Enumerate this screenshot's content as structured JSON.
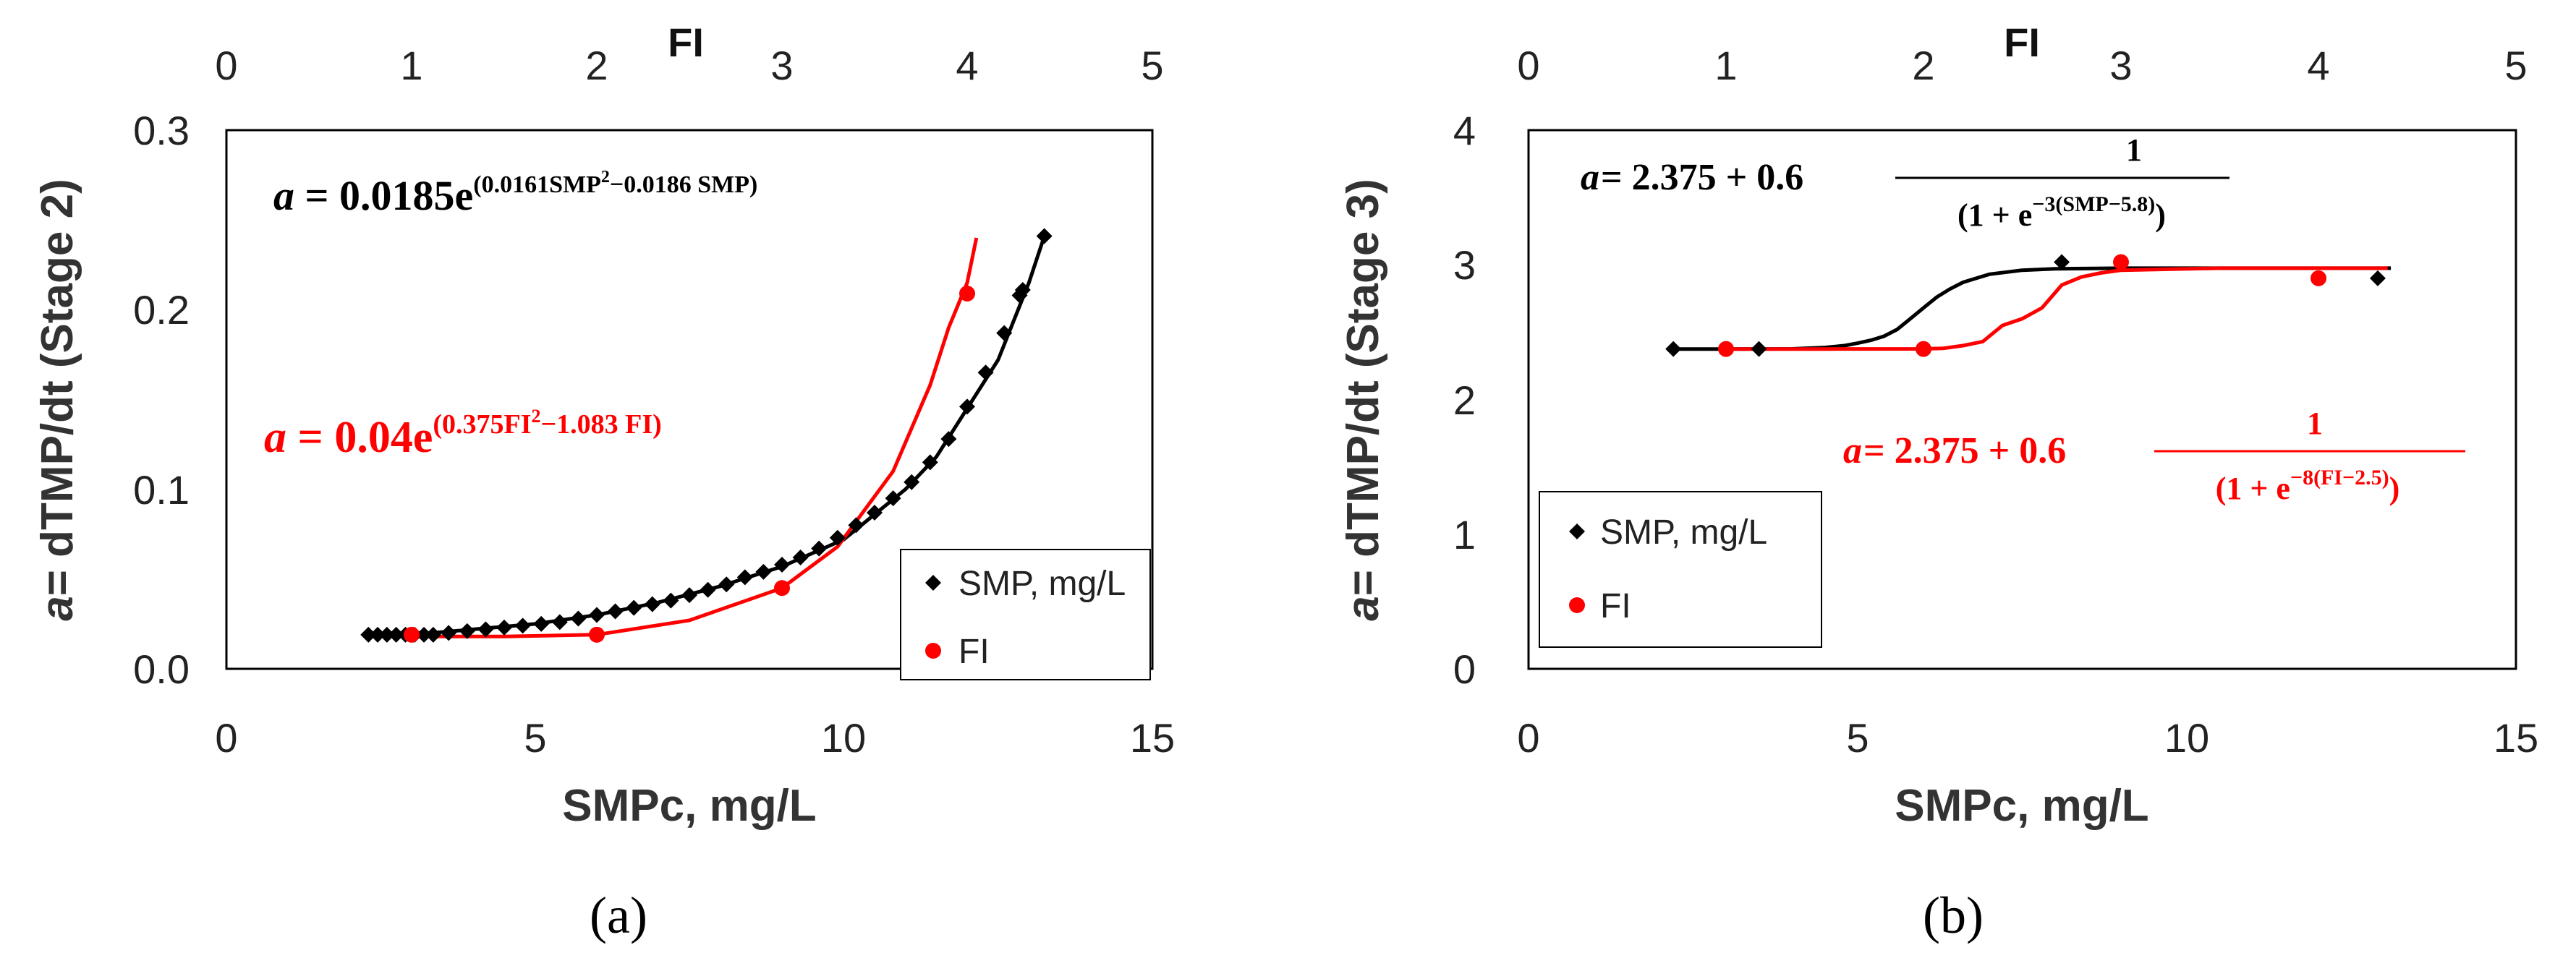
{
  "chart_data": [
    {
      "type": "scatter",
      "panel_label": "(a)",
      "xlabel": "SMPc, mg/L",
      "x2label": "FI",
      "ylabel": "= dTMP/dt  (Stage 2)",
      "ylabel_symbol": "a",
      "xlim": [
        0,
        15
      ],
      "x2lim": [
        0,
        5
      ],
      "ylim": [
        0,
        0.3
      ],
      "x_ticks": [
        "0",
        "5",
        "10",
        "15"
      ],
      "x2_ticks": [
        "0",
        "1",
        "2",
        "3",
        "4",
        "5"
      ],
      "y_ticks": [
        "0.0",
        "0.1",
        "0.2",
        "0.3"
      ],
      "grid": false,
      "legend_position": "bottom-right",
      "equations": [
        {
          "name": "smp",
          "lhs": "a",
          "coef": " = 0.0185e",
          "exp_a": "(0.0161SMP",
          "exp_b": "2",
          "exp_c": "−0.0186 SMP)",
          "color": "#000000"
        },
        {
          "name": "fi",
          "lhs": "a",
          "coef": " = 0.04e",
          "exp_a": "(0.375FI",
          "exp_b": "2",
          "exp_c": "−1.083 FI)",
          "color": "#ff0000"
        }
      ],
      "series": [
        {
          "name": "SMP, mg/L",
          "axis": "x",
          "color": "#000000",
          "marker": "diamond",
          "x": [
            2.3,
            2.45,
            2.6,
            2.75,
            2.9,
            3.05,
            3.2,
            3.35,
            3.6,
            3.9,
            4.2,
            4.5,
            4.8,
            5.1,
            5.4,
            5.7,
            6.0,
            6.3,
            6.6,
            6.9,
            7.2,
            7.5,
            7.8,
            8.1,
            8.4,
            8.7,
            9.0,
            9.3,
            9.6,
            9.9,
            10.2,
            10.5,
            10.8,
            11.1,
            11.4,
            11.7,
            12.0,
            12.3,
            12.6,
            12.85,
            12.9,
            13.25
          ],
          "y": [
            0.019,
            0.019,
            0.019,
            0.019,
            0.019,
            0.019,
            0.019,
            0.019,
            0.02,
            0.021,
            0.022,
            0.023,
            0.024,
            0.025,
            0.026,
            0.028,
            0.03,
            0.032,
            0.034,
            0.036,
            0.038,
            0.041,
            0.044,
            0.047,
            0.051,
            0.054,
            0.058,
            0.062,
            0.067,
            0.073,
            0.08,
            0.087,
            0.095,
            0.104,
            0.115,
            0.128,
            0.146,
            0.165,
            0.187,
            0.208,
            0.211,
            0.241
          ]
        },
        {
          "name": "FI",
          "axis": "x2",
          "color": "#ff0000",
          "marker": "circle",
          "x": [
            1,
            2,
            3,
            4
          ],
          "y": [
            0.019,
            0.019,
            0.045,
            0.209
          ]
        }
      ],
      "fits": [
        {
          "name": "SMP fit",
          "axis": "x",
          "color": "#000000",
          "x": [
            2.3,
            3,
            4,
            5,
            6,
            7,
            8,
            9,
            10,
            11,
            11.5,
            12,
            12.5,
            13,
            13.25
          ],
          "y": [
            0.019,
            0.019,
            0.022,
            0.025,
            0.03,
            0.037,
            0.046,
            0.057,
            0.072,
            0.1,
            0.118,
            0.145,
            0.172,
            0.215,
            0.241
          ]
        },
        {
          "name": "FI fit",
          "axis": "x2",
          "color": "#ff0000",
          "x": [
            1,
            1.5,
            2,
            2.5,
            3,
            3.3,
            3.6,
            3.8,
            3.9,
            4.0,
            4.05
          ],
          "y": [
            0.018,
            0.018,
            0.019,
            0.027,
            0.045,
            0.068,
            0.11,
            0.158,
            0.19,
            0.215,
            0.24
          ]
        }
      ]
    },
    {
      "type": "scatter",
      "panel_label": "(b)",
      "xlabel": "SMPc, mg/L",
      "x2label": "FI",
      "ylabel": "= dTMP/dt  (Stage 3)",
      "ylabel_symbol": "a",
      "xlim": [
        0,
        15
      ],
      "x2lim": [
        0,
        5
      ],
      "ylim": [
        0,
        4
      ],
      "x_ticks": [
        "0",
        "5",
        "10",
        "15"
      ],
      "x2_ticks": [
        "0",
        "1",
        "2",
        "3",
        "4",
        "5"
      ],
      "y_ticks": [
        "0",
        "1",
        "2",
        "3",
        "4"
      ],
      "grid": false,
      "legend_position": "bottom-left",
      "equations": [
        {
          "name": "smp",
          "lhs": "a",
          "coef": " = 2.375 + 0.6",
          "num": "1",
          "den_a": "(1 + e",
          "den_b": "−3(SMP−5.8)",
          "den_c": ")",
          "color": "#000000"
        },
        {
          "name": "fi",
          "lhs": "a",
          "coef": " = 2.375 + 0.6",
          "num": "1",
          "den_a": "(1 + e",
          "den_b": "−8(FI−2.5)",
          "den_c": ")",
          "color": "#ff0000"
        }
      ],
      "series": [
        {
          "name": "SMP, mg/L",
          "axis": "x",
          "color": "#000000",
          "marker": "diamond",
          "x": [
            2.2,
            3.5,
            8.1,
            12.9
          ],
          "y": [
            2.375,
            2.375,
            3.02,
            2.9
          ]
        },
        {
          "name": "FI",
          "axis": "x2",
          "color": "#ff0000",
          "marker": "circle",
          "x": [
            1,
            2,
            3,
            4
          ],
          "y": [
            2.375,
            2.375,
            3.02,
            2.9
          ]
        }
      ],
      "fits": [
        {
          "name": "SMP fit",
          "axis": "x",
          "color": "#000000",
          "x": [
            2.2,
            3,
            4,
            4.5,
            4.8,
            5.0,
            5.2,
            5.4,
            5.6,
            5.8,
            6.0,
            6.2,
            6.4,
            6.6,
            6.8,
            7.0,
            7.5,
            8,
            9,
            10,
            11,
            12,
            13.1
          ],
          "y": [
            2.375,
            2.375,
            2.376,
            2.386,
            2.4,
            2.418,
            2.44,
            2.47,
            2.52,
            2.6,
            2.68,
            2.76,
            2.82,
            2.87,
            2.9,
            2.93,
            2.96,
            2.97,
            2.975,
            2.975,
            2.975,
            2.975,
            2.975
          ]
        },
        {
          "name": "FI fit",
          "axis": "x2",
          "color": "#ff0000",
          "x": [
            1,
            1.5,
            2,
            2.1,
            2.2,
            2.3,
            2.4,
            2.5,
            2.6,
            2.7,
            2.8,
            2.9,
            3,
            3.5,
            4,
            4.35
          ],
          "y": [
            2.375,
            2.375,
            2.376,
            2.38,
            2.4,
            2.43,
            2.55,
            2.6,
            2.68,
            2.85,
            2.91,
            2.94,
            2.96,
            2.975,
            2.975,
            2.975
          ]
        }
      ]
    }
  ]
}
